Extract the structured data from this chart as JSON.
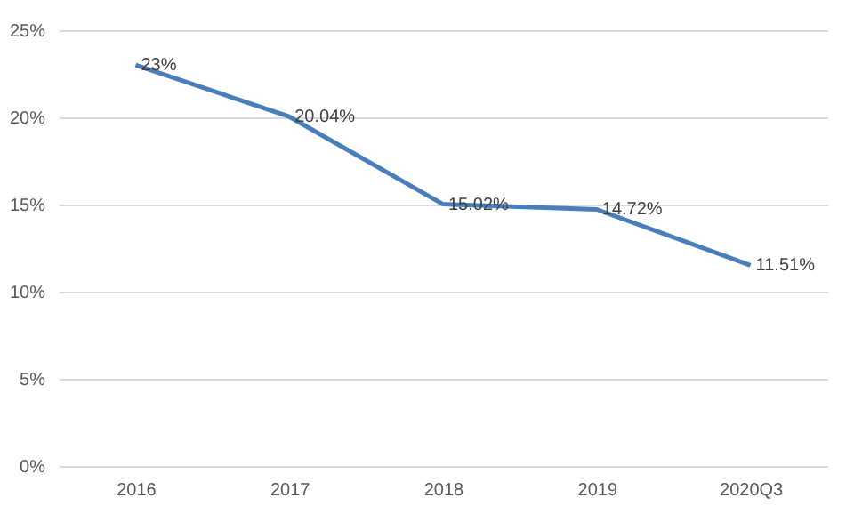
{
  "chart_data": {
    "type": "line",
    "categories": [
      "2016",
      "2017",
      "2018",
      "2019",
      "2020Q3"
    ],
    "series": [
      {
        "color": "#4a7ebb",
        "values": [
          23,
          20.04,
          15.02,
          14.72,
          11.51
        ],
        "value_labels": [
          "23%",
          "20.04%",
          "15.02%",
          "14.72%",
          "11.51%"
        ]
      }
    ],
    "ylim": [
      0,
      25
    ],
    "yticks": [
      {
        "value": 0,
        "label": "0%"
      },
      {
        "value": 5,
        "label": "5%"
      },
      {
        "value": 10,
        "label": "10%"
      },
      {
        "value": 15,
        "label": "15%"
      },
      {
        "value": 20,
        "label": "20%"
      },
      {
        "value": 25,
        "label": "25%"
      }
    ],
    "grid": "y",
    "legend": false,
    "marker": "none",
    "line_style": "solid"
  }
}
